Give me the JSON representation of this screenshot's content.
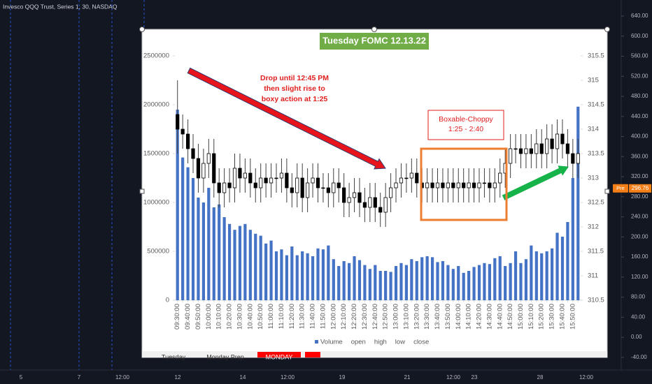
{
  "chart_data": {
    "type": "candlestick-volume",
    "title": "Tuesday FOMC 12.13.22",
    "annotations": [
      "Drop until 12:45 PM",
      "then slight rise to",
      "boxy action at 1:25",
      "Boxable-Choppy",
      "1:25 - 2:40"
    ],
    "categories": [
      "09:30:00",
      null,
      "09:40:00",
      null,
      "09:50:00",
      null,
      "10:00:00",
      null,
      "10:10:00",
      null,
      "10:20:00",
      null,
      "10:30:00",
      null,
      "10:40:00",
      null,
      "10:50:00",
      null,
      "11:00:00",
      null,
      "11:10:00",
      null,
      "11:20:00",
      null,
      "11:30:00",
      null,
      "11:40:00",
      null,
      "11:50:00",
      null,
      "12:00:00",
      null,
      "12:10:00",
      null,
      "12:20:00",
      null,
      "12:30:00",
      null,
      "12:40:00",
      null,
      "12:50:00",
      null,
      "13:00:00",
      null,
      "13:10:00",
      null,
      "13:20:00",
      null,
      "13:30:00",
      null,
      "13:40:00",
      null,
      "13:50:00",
      null,
      "14:00:00",
      null,
      "14:10:00",
      null,
      "14:20:00",
      null,
      "14:30:00",
      null,
      "14:40:00",
      null,
      "14:50:00",
      null,
      "15:00:00",
      null,
      "15:10:00",
      null,
      "15:20:00",
      null,
      "15:30:00",
      null,
      "15:40:00",
      null,
      "15:50:00",
      null
    ],
    "series": [
      {
        "name": "Volume",
        "color": "#4472c4",
        "axis": "y",
        "values": [
          1950000,
          1460000,
          1360000,
          1250000,
          1050000,
          1000000,
          1150000,
          950000,
          980000,
          850000,
          780000,
          720000,
          760000,
          780000,
          720000,
          680000,
          660000,
          580000,
          610000,
          500000,
          520000,
          460000,
          550000,
          460000,
          500000,
          480000,
          450000,
          530000,
          520000,
          560000,
          420000,
          350000,
          400000,
          380000,
          450000,
          410000,
          360000,
          320000,
          360000,
          300000,
          300000,
          290000,
          350000,
          380000,
          360000,
          420000,
          400000,
          440000,
          450000,
          440000,
          390000,
          400000,
          360000,
          320000,
          350000,
          280000,
          300000,
          340000,
          360000,
          380000,
          370000,
          430000,
          450000,
          350000,
          380000,
          500000,
          380000,
          420000,
          560000,
          500000,
          480000,
          500000,
          530000,
          690000,
          650000,
          800000,
          1250000,
          1980000
        ]
      },
      {
        "name": "open",
        "axis": "y2",
        "values": [
          314.3,
          314.0,
          313.9,
          313.6,
          313.4,
          313.0,
          313.3,
          313.5,
          312.9,
          312.7,
          312.9,
          312.8,
          313.2,
          313.0,
          313.1,
          312.9,
          312.8,
          313.0,
          312.9,
          313.0,
          313.0,
          313.1,
          312.8,
          312.7,
          313.0,
          312.6,
          312.9,
          313.0,
          312.8,
          312.8,
          312.7,
          312.9,
          312.8,
          312.5,
          312.6,
          312.7,
          312.5,
          312.4,
          312.6,
          312.4,
          312.3,
          312.6,
          312.8,
          312.9,
          313.0,
          313.0,
          313.1,
          312.9,
          312.8,
          312.9,
          312.8,
          312.9,
          312.8,
          312.9,
          312.8,
          312.9,
          312.8,
          312.9,
          312.8,
          312.9,
          312.9,
          312.8,
          312.9,
          313.1,
          313.3,
          313.6,
          313.6,
          313.5,
          313.6,
          313.5,
          313.7,
          313.5,
          313.8,
          313.6,
          313.9,
          313.7,
          313.5,
          313.3
        ]
      },
      {
        "name": "high",
        "axis": "y2",
        "values": [
          315.0,
          314.3,
          314.2,
          313.9,
          313.7,
          313.6,
          313.8,
          313.8,
          313.2,
          313.2,
          313.2,
          313.5,
          313.5,
          313.4,
          313.4,
          313.2,
          313.3,
          313.3,
          313.3,
          313.3,
          313.4,
          313.4,
          313.1,
          313.3,
          313.3,
          313.2,
          313.3,
          313.3,
          313.1,
          313.1,
          313.2,
          313.2,
          313.1,
          312.9,
          313.0,
          313.0,
          312.8,
          312.9,
          312.9,
          312.7,
          312.9,
          313.1,
          313.2,
          313.3,
          313.3,
          313.4,
          313.4,
          313.2,
          313.2,
          313.2,
          313.2,
          313.2,
          313.2,
          313.2,
          313.2,
          313.2,
          313.2,
          313.2,
          313.2,
          313.2,
          313.2,
          313.2,
          313.4,
          313.6,
          313.9,
          313.9,
          313.9,
          313.9,
          313.9,
          314.0,
          314.0,
          314.1,
          314.1,
          314.2,
          314.2,
          314.0,
          313.8,
          313.8
        ]
      },
      {
        "name": "low",
        "axis": "y2",
        "values": [
          313.5,
          313.6,
          313.3,
          313.1,
          312.7,
          312.7,
          313.0,
          312.6,
          312.4,
          312.4,
          312.5,
          312.5,
          312.7,
          312.7,
          312.6,
          312.5,
          312.5,
          312.6,
          312.6,
          312.7,
          312.7,
          312.5,
          312.4,
          312.4,
          312.3,
          312.3,
          312.6,
          312.5,
          312.5,
          312.4,
          312.4,
          312.5,
          312.2,
          312.2,
          312.3,
          312.2,
          312.1,
          312.1,
          312.1,
          312.0,
          312.0,
          312.3,
          312.5,
          312.6,
          312.7,
          312.7,
          312.6,
          312.5,
          312.5,
          312.5,
          312.5,
          312.5,
          312.5,
          312.5,
          312.5,
          312.5,
          312.5,
          312.5,
          312.5,
          312.6,
          312.5,
          312.5,
          312.6,
          312.8,
          313.0,
          313.3,
          313.2,
          313.2,
          313.2,
          313.2,
          313.2,
          313.2,
          313.3,
          313.3,
          313.4,
          313.2,
          313.0,
          313.0
        ]
      },
      {
        "name": "close",
        "axis": "y2",
        "values": [
          314.0,
          313.9,
          313.6,
          313.4,
          313.0,
          313.3,
          313.5,
          312.9,
          312.7,
          312.9,
          312.8,
          313.2,
          313.0,
          313.1,
          312.9,
          312.8,
          313.0,
          312.9,
          313.0,
          313.0,
          313.1,
          312.8,
          312.7,
          313.0,
          312.6,
          312.9,
          313.0,
          312.8,
          312.8,
          312.7,
          312.9,
          312.8,
          312.5,
          312.6,
          312.7,
          312.5,
          312.4,
          312.6,
          312.4,
          312.3,
          312.6,
          312.8,
          312.9,
          313.0,
          313.0,
          313.1,
          312.9,
          312.8,
          312.9,
          312.8,
          312.9,
          312.8,
          312.9,
          312.8,
          312.9,
          312.8,
          312.9,
          312.8,
          312.9,
          312.9,
          312.8,
          312.9,
          313.1,
          313.3,
          313.6,
          313.6,
          313.5,
          313.6,
          313.5,
          313.7,
          313.5,
          313.8,
          313.6,
          313.9,
          313.7,
          313.5,
          313.3,
          313.5
        ]
      }
    ],
    "ylim": [
      0,
      2500000
    ],
    "yticks": [
      0,
      500000,
      1000000,
      1500000,
      2000000,
      2500000
    ],
    "y2lim": [
      310.5,
      315.5
    ],
    "y2ticks": [
      310.5,
      311,
      311.5,
      312,
      312.5,
      313,
      313.5,
      314,
      314.5,
      315,
      315.5
    ],
    "up_color": "#ffffff",
    "down_color": "#000000"
  },
  "platform": {
    "header": "Invesco QQQ Trust, Series 1, 30, NASDAQ",
    "price_axis": {
      "ylim": [
        -93,
        672
      ],
      "ticks": [
        {
          "value": 640,
          "label": "640.00"
        },
        {
          "value": 600,
          "label": "600.00"
        },
        {
          "value": 560,
          "label": "560.00"
        },
        {
          "value": 520,
          "label": "520.00"
        },
        {
          "value": 480,
          "label": "480.00"
        },
        {
          "value": 440,
          "label": "440.00"
        },
        {
          "value": 400,
          "label": "400.00"
        },
        {
          "value": 360,
          "label": "360.00"
        },
        {
          "value": 320,
          "label": "320.00"
        },
        {
          "value": 280,
          "label": "280.00"
        },
        {
          "value": 240,
          "label": "240.00"
        },
        {
          "value": 200,
          "label": "200.00"
        },
        {
          "value": 160,
          "label": "160.00"
        },
        {
          "value": 120,
          "label": "120.00"
        },
        {
          "value": 80,
          "label": "80.00"
        },
        {
          "value": 40,
          "label": "40.00"
        },
        {
          "value": 0,
          "label": "0.00"
        },
        {
          "value": -40,
          "label": "-40.00"
        }
      ]
    },
    "price_badge": {
      "tag": "Pre",
      "value": {
        "value": 296.76,
        "label": "296.76"
      }
    },
    "time_labels": [
      "5",
      "7",
      "12:00",
      "12",
      "14",
      "12:00",
      "19",
      "21",
      "12:00",
      "23",
      "28",
      "12:00"
    ],
    "sheet_tabs": [
      "Tuesday",
      "Monday Prep",
      "MONDAY"
    ]
  }
}
